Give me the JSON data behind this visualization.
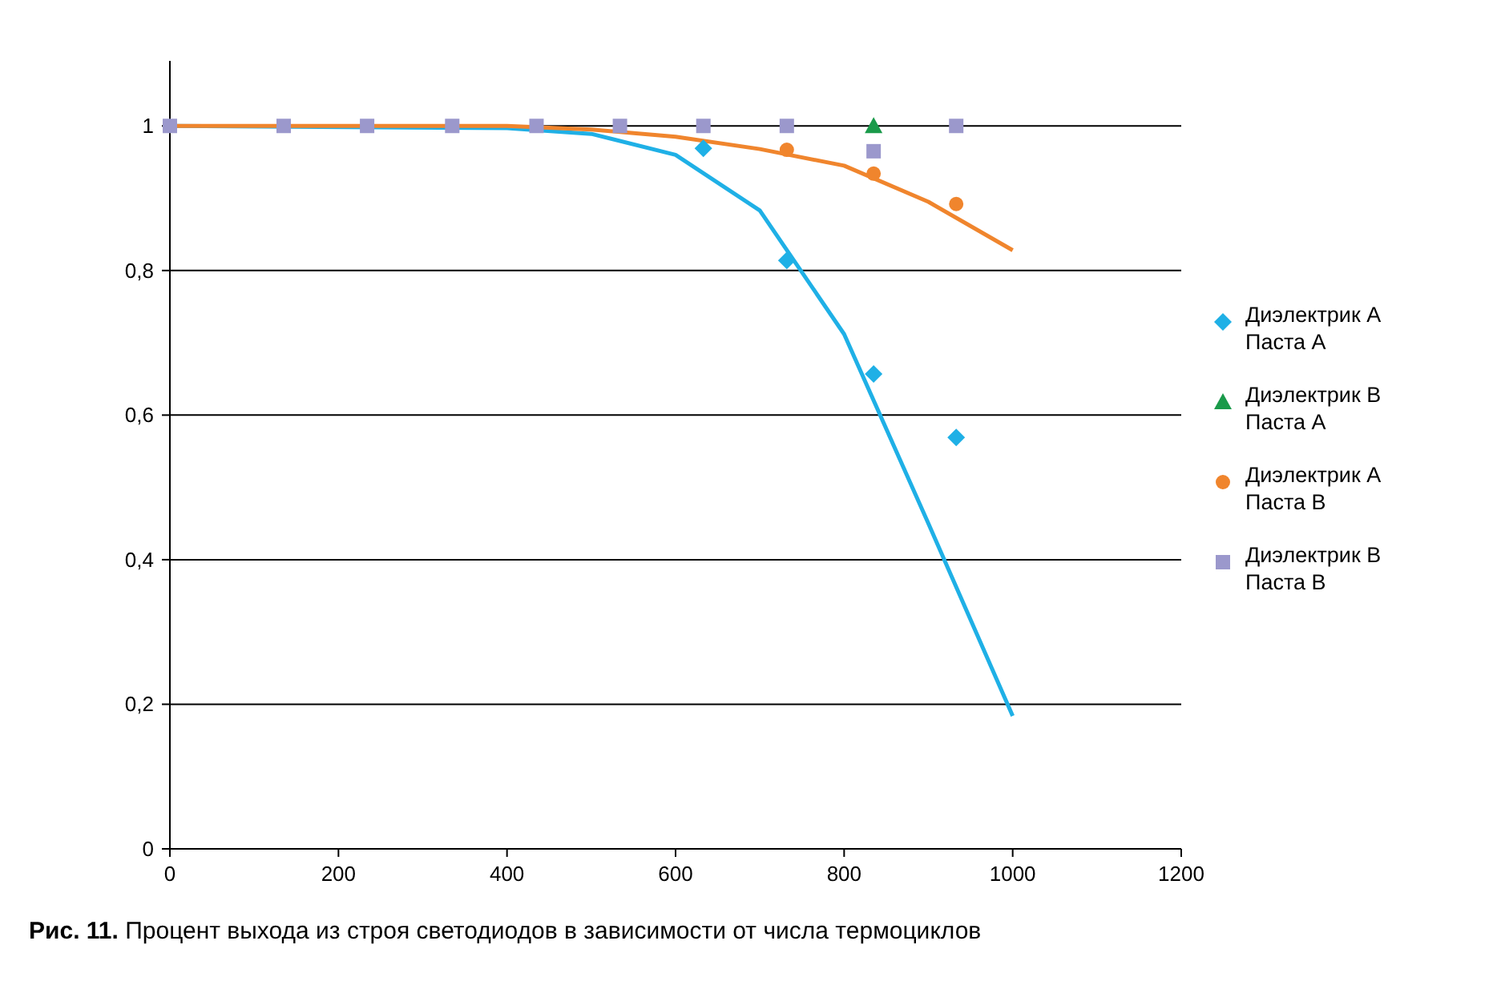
{
  "chart_data": {
    "type": "scatter",
    "title": "Рис. 11. Процент выхода из строя светодиодов в зависимости от числа термоциклов",
    "xlim": [
      0,
      1200
    ],
    "xticks": [
      0,
      200,
      400,
      600,
      800,
      1000,
      1200
    ],
    "ylim": [
      0,
      1.09
    ],
    "yticks": [
      0,
      {
        "value": 0.2,
        "label": "0,2"
      },
      {
        "value": 0.4,
        "label": "0,4"
      },
      {
        "value": 0.6,
        "label": "0,6"
      },
      {
        "value": 0.8,
        "label": "0,8"
      },
      {
        "value": 1,
        "label": "1"
      }
    ],
    "grid": "y",
    "legend": "right",
    "series": [
      {
        "type": "line",
        "color": "#1fb0e6",
        "x": [
          0,
          400,
          500,
          600,
          700,
          800,
          900,
          1000
        ],
        "values": [
          1,
          0.997,
          0.989,
          0.96,
          0.883,
          0.712,
          0.45,
          0.184
        ]
      },
      {
        "type": "line",
        "color": "#f0852d",
        "x": [
          0,
          400,
          500,
          600,
          700,
          800,
          900,
          1000
        ],
        "values": [
          1,
          1,
          0.995,
          0.985,
          0.968,
          0.945,
          0.895,
          0.828
        ]
      },
      {
        "name": "Диэлектрик A\nПаста A",
        "color": "#1fb0e6",
        "marker": "diamond",
        "x": [
          633,
          732,
          835,
          933
        ],
        "values": [
          0.969,
          0.814,
          0.657,
          0.569
        ]
      },
      {
        "name": "Диэлектрик B\nПаста A",
        "color": "#1a9a4a",
        "marker": "triangle",
        "x": [
          835
        ],
        "values": [
          1
        ]
      },
      {
        "name": "Диэлектрик A\nПаста B",
        "color": "#f0852d",
        "marker": "circle",
        "x": [
          732,
          835,
          933
        ],
        "values": [
          0.967,
          0.934,
          0.892
        ]
      },
      {
        "name": "Диэлектрик B\nПаста B",
        "color": "#9b98cc",
        "marker": "square",
        "x": [
          0,
          135,
          234,
          335,
          435,
          534,
          633,
          732,
          835,
          933
        ],
        "values": [
          1,
          1,
          1,
          1,
          1,
          1,
          1,
          1,
          0.965,
          1
        ]
      }
    ]
  }
}
